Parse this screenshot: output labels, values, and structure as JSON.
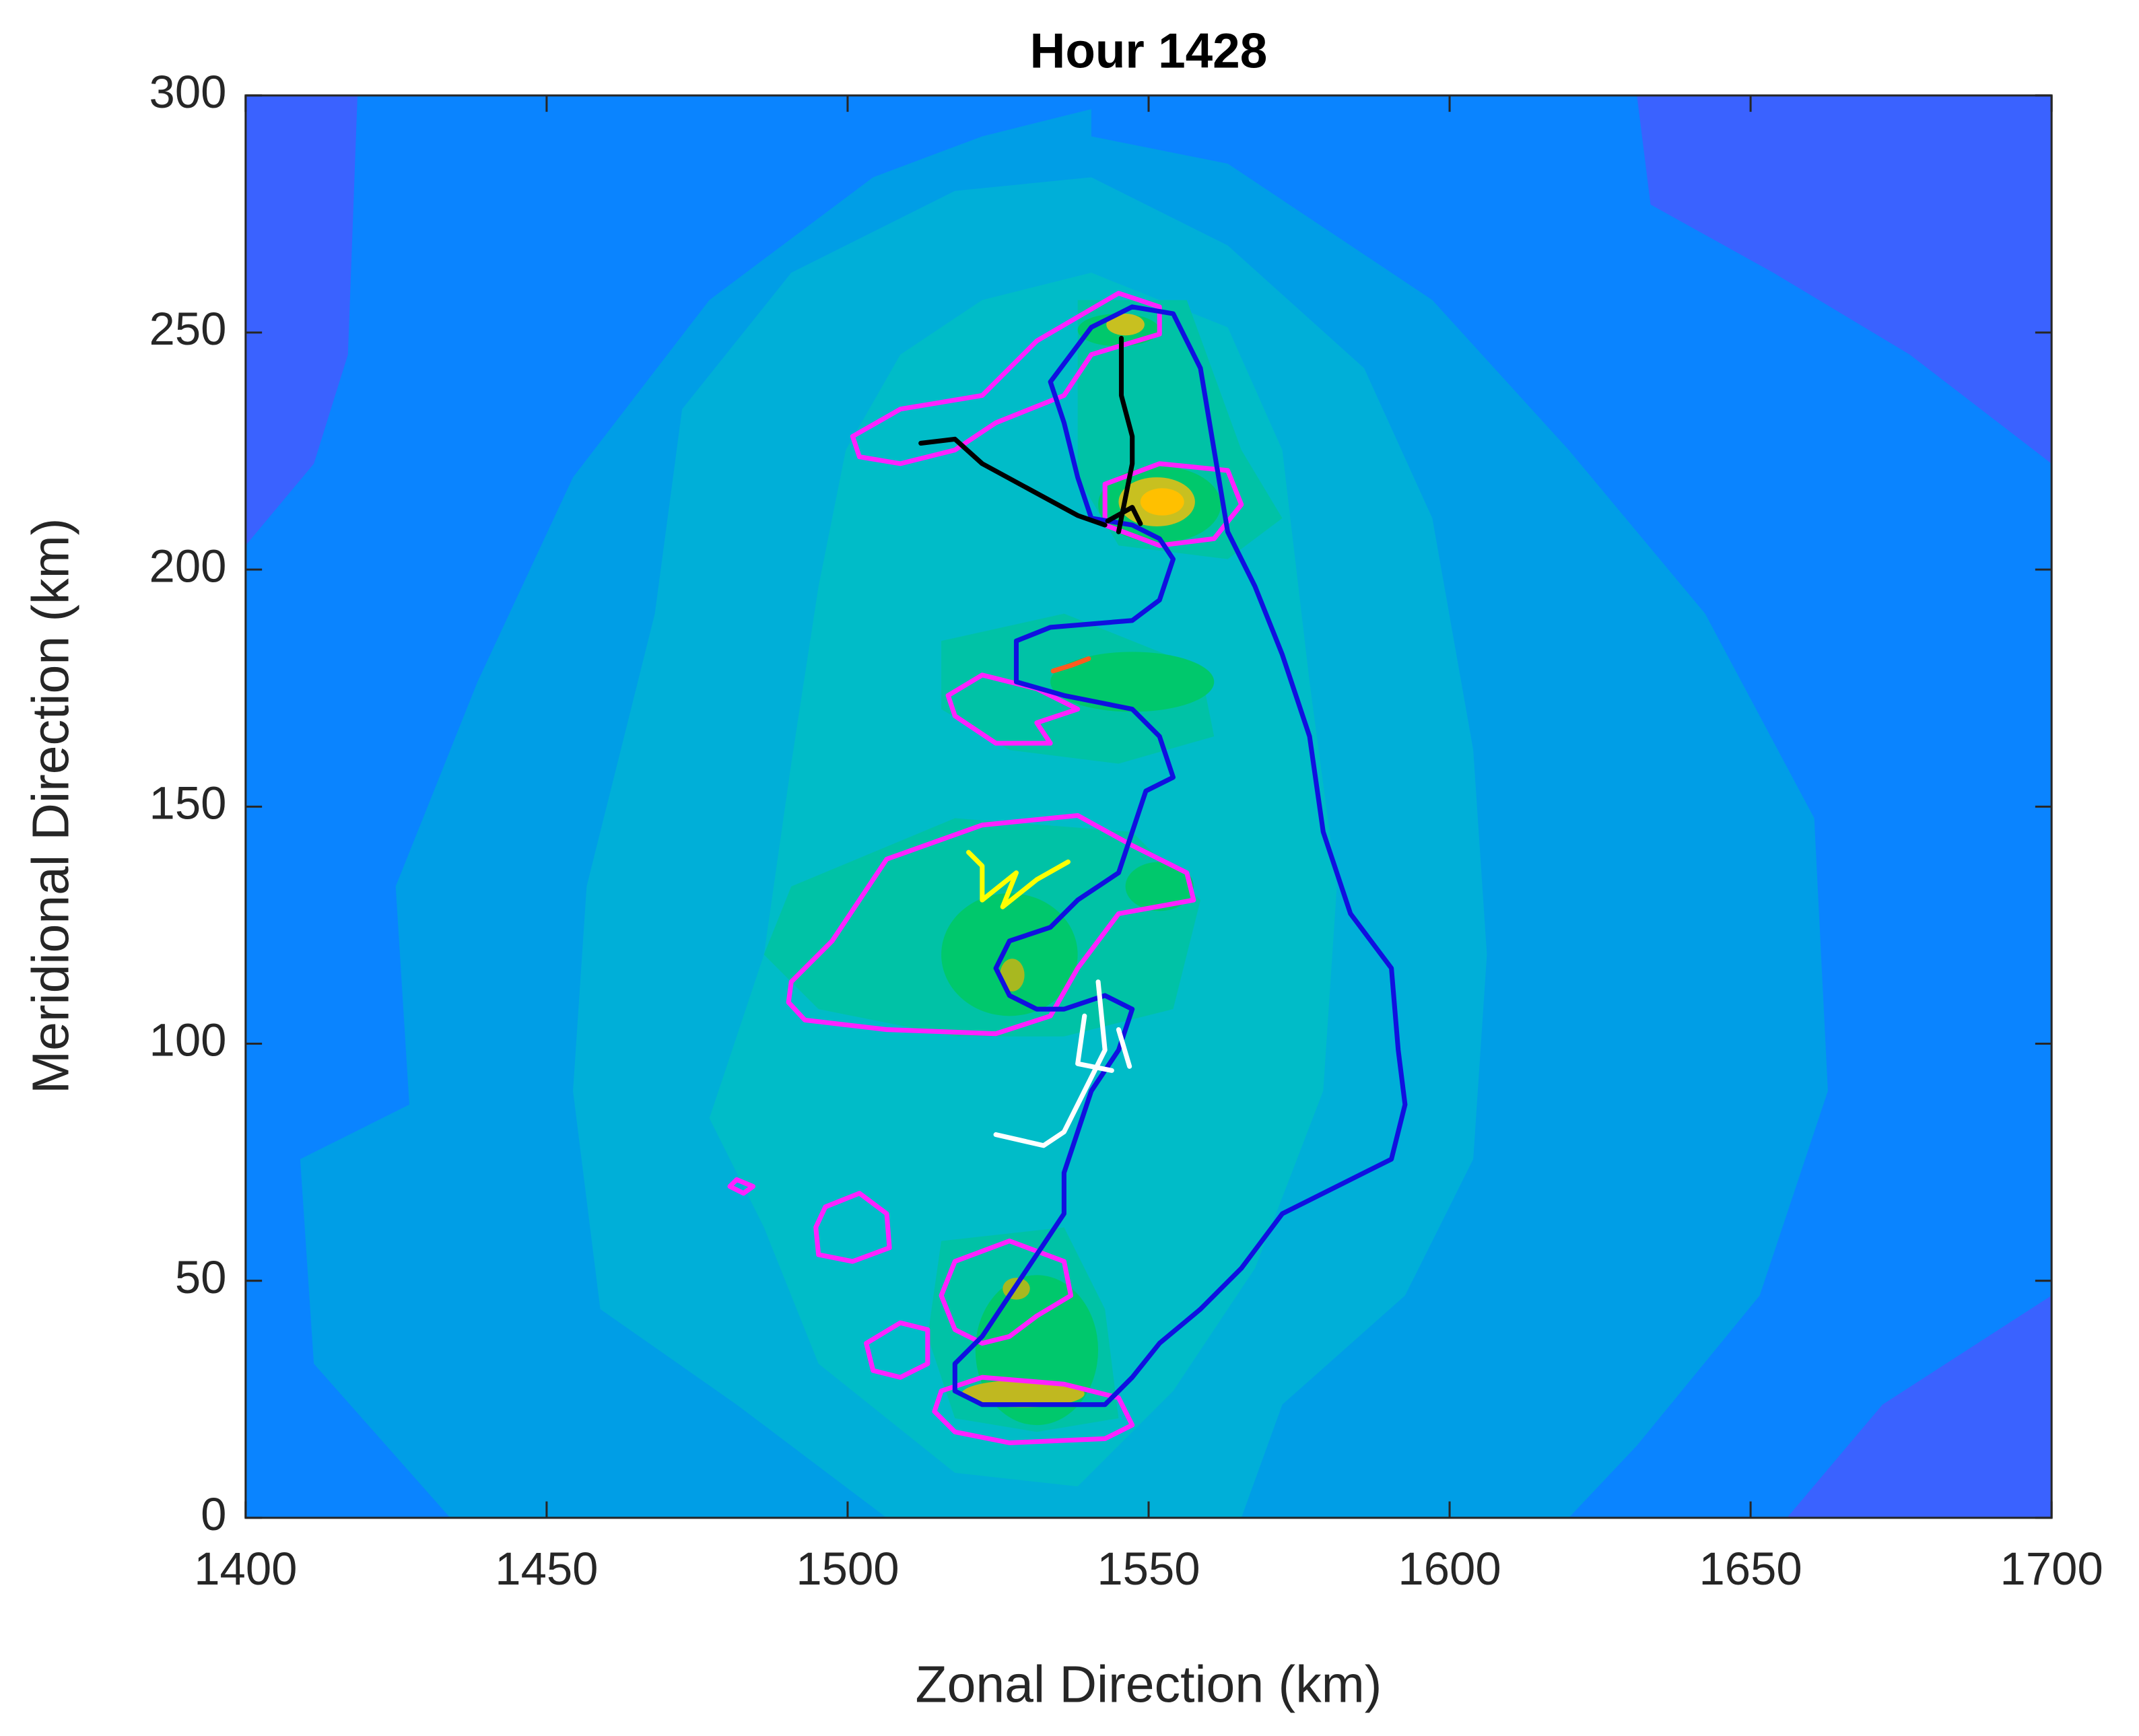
{
  "chart_data": {
    "type": "contour",
    "title": "Hour 1428",
    "x_label": "Zonal Direction (km)",
    "y_label": "Meridional Direction (km)",
    "xlim": [
      1400,
      1700
    ],
    "ylim": [
      0,
      300
    ],
    "xticks": [
      1400,
      1450,
      1500,
      1550,
      1600,
      1650,
      1700
    ],
    "yticks": [
      0,
      50,
      100,
      150,
      200,
      250,
      300
    ]
  }
}
